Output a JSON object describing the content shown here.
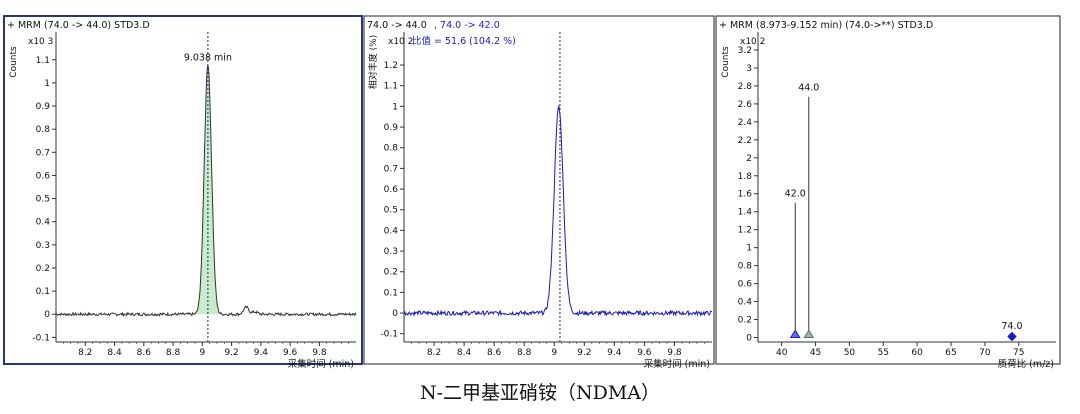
{
  "figure_caption": "N-二甲基亚硝铵（NDMA）",
  "chart_data": [
    {
      "type": "line",
      "header": "+ MRM (74.0 -> 44.0) STD3.D",
      "ylabel": "Counts",
      "y_multiplier": "x10 3",
      "xlabel": "采集时间 (min)",
      "xlim": [
        8.0,
        10.05
      ],
      "ylim": [
        -0.12,
        1.22
      ],
      "x_ticks": [
        8.2,
        8.4,
        8.6,
        8.8,
        9,
        9.2,
        9.4,
        9.6,
        9.8
      ],
      "y_ticks": [
        -0.1,
        0,
        0.1,
        0.2,
        0.3,
        0.4,
        0.5,
        0.6,
        0.7,
        0.8,
        0.9,
        1,
        1.1
      ],
      "peak_label": "9.038 min",
      "marker_x": 9.038,
      "baseline": 0,
      "peak_x": 9.038,
      "peak_y": 1.08,
      "peak_width": 0.025,
      "peak_fill": true,
      "noise": 0.006,
      "bumps": [
        [
          9.3,
          0.03
        ],
        [
          9.36,
          0.01
        ]
      ],
      "line_color": "#333333",
      "fill_color": "#c8ecc8",
      "marker_color": "#1a1aa8"
    },
    {
      "type": "line",
      "header_parts": [
        "74.0 -> 44.0",
        ", 74.0 -> 42.0"
      ],
      "ylabel": "相对丰度 (%)",
      "y_multiplier": "x10 2",
      "annotation": "比值 = 51.6 (104.2 %)",
      "xlabel": "采集时间 (min)",
      "xlim": [
        8.0,
        10.05
      ],
      "ylim": [
        -0.14,
        1.36
      ],
      "x_ticks": [
        8.2,
        8.4,
        8.6,
        8.8,
        9,
        9.2,
        9.4,
        9.6,
        9.8
      ],
      "y_ticks": [
        -0.1,
        0,
        0.1,
        0.2,
        0.3,
        0.4,
        0.5,
        0.6,
        0.7,
        0.8,
        0.9,
        1,
        1.1,
        1.2
      ],
      "marker_x": 9.038,
      "baseline": 0,
      "peak_x": 9.03,
      "peak_y": 1.0,
      "peak_width": 0.03,
      "peak_fill": false,
      "noise": 0.01,
      "bumps": [],
      "line_color": "#1a1ab4",
      "marker_color": "#1a1aa8"
    },
    {
      "type": "bar",
      "header": "+ MRM (8.973-9.152 min) (74.0->**) STD3.D",
      "ylabel": "Counts",
      "y_multiplier": "x10 2",
      "xlabel": "质荷比 (m/z)",
      "xlim": [
        36.5,
        80.5
      ],
      "ylim": [
        -0.05,
        3.4
      ],
      "x_ticks": [
        40,
        45,
        50,
        55,
        60,
        65,
        70,
        75
      ],
      "y_ticks": [
        0,
        0.2,
        0.4,
        0.6,
        0.8,
        1,
        1.2,
        1.4,
        1.6,
        1.8,
        2,
        2.2,
        2.4,
        2.6,
        2.8,
        3,
        3.2
      ],
      "bars": [
        {
          "x": 42.0,
          "y": 1.5,
          "label": "42.0",
          "marker": "triangle"
        },
        {
          "x": 44.0,
          "y": 2.68,
          "label": "44.0",
          "marker": "triangle"
        },
        {
          "x": 74.0,
          "y": 0.03,
          "label": "74.0",
          "marker": "diamond"
        }
      ],
      "line_color": "#333333",
      "marker_color": "#1a1ac8",
      "triangle_outline_color": "#607070"
    }
  ]
}
